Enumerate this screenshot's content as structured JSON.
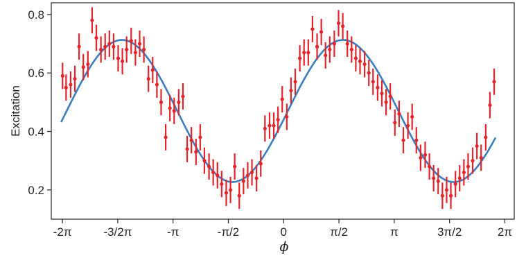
{
  "chart_data": {
    "type": "scatter",
    "title": "",
    "xlabel": "ϕ",
    "ylabel": "Excitation",
    "xlim": [
      -6.6,
      6.55
    ],
    "ylim": [
      0.1,
      0.84
    ],
    "grid": false,
    "x_ticks": [
      {
        "value": -6.2832,
        "label": "-2π"
      },
      {
        "value": -4.7124,
        "label": "-3/2π"
      },
      {
        "value": -3.1416,
        "label": "-π"
      },
      {
        "value": -1.5708,
        "label": "-π/2"
      },
      {
        "value": 0,
        "label": "0"
      },
      {
        "value": 1.5708,
        "label": "π/2"
      },
      {
        "value": 3.1416,
        "label": "π"
      },
      {
        "value": 4.7124,
        "label": "3π/2"
      },
      {
        "value": 6.2832,
        "label": "2π"
      }
    ],
    "y_ticks": [
      {
        "value": 0.2,
        "label": "0.2"
      },
      {
        "value": 0.4,
        "label": "0.4"
      },
      {
        "value": 0.6,
        "label": "0.6"
      },
      {
        "value": 0.8,
        "label": "0.8"
      }
    ],
    "series": [
      {
        "kind": "points-with-errorbars",
        "color": "#e3242b",
        "error": 0.045,
        "x": [
          -6.28,
          -6.18,
          -6.05,
          -5.93,
          -5.81,
          -5.69,
          -5.56,
          -5.44,
          -5.32,
          -5.19,
          -5.07,
          -4.95,
          -4.83,
          -4.7,
          -4.58,
          -4.46,
          -4.33,
          -4.21,
          -4.09,
          -3.97,
          -3.84,
          -3.72,
          -3.6,
          -3.48,
          -3.35,
          -3.23,
          -3.11,
          -2.98,
          -2.86,
          -2.74,
          -2.62,
          -2.49,
          -2.37,
          -2.25,
          -2.12,
          -2.0,
          -1.88,
          -1.76,
          -1.63,
          -1.51,
          -1.39,
          -1.26,
          -1.14,
          -1.02,
          -0.9,
          -0.77,
          -0.65,
          -0.53,
          -0.4,
          -0.28,
          -0.16,
          -0.04,
          0.09,
          0.21,
          0.33,
          0.46,
          0.58,
          0.7,
          0.82,
          0.95,
          1.07,
          1.19,
          1.31,
          1.44,
          1.56,
          1.68,
          1.81,
          1.93,
          2.05,
          2.17,
          2.3,
          2.42,
          2.54,
          2.67,
          2.79,
          2.91,
          3.03,
          3.16,
          3.28,
          3.4,
          3.53,
          3.65,
          3.77,
          3.89,
          4.02,
          4.14,
          4.26,
          4.39,
          4.51,
          4.63,
          4.75,
          4.88,
          5.0,
          5.12,
          5.24,
          5.37,
          5.49,
          5.61,
          5.74,
          5.86,
          5.98
        ],
        "y": [
          0.59,
          0.55,
          0.56,
          0.58,
          0.69,
          0.62,
          0.63,
          0.78,
          0.72,
          0.68,
          0.69,
          0.7,
          0.69,
          0.65,
          0.64,
          0.68,
          0.71,
          0.67,
          0.7,
          0.68,
          0.58,
          0.61,
          0.56,
          0.5,
          0.38,
          0.48,
          0.47,
          0.5,
          0.52,
          0.34,
          0.37,
          0.33,
          0.38,
          0.3,
          0.28,
          0.26,
          0.25,
          0.22,
          0.19,
          0.2,
          0.28,
          0.18,
          0.23,
          0.25,
          0.26,
          0.24,
          0.29,
          0.41,
          0.42,
          0.42,
          0.44,
          0.51,
          0.45,
          0.54,
          0.57,
          0.65,
          0.67,
          0.67,
          0.75,
          0.69,
          0.74,
          0.66,
          0.68,
          0.7,
          0.77,
          0.76,
          0.7,
          0.68,
          0.65,
          0.64,
          0.63,
          0.6,
          0.57,
          0.55,
          0.53,
          0.5,
          0.52,
          0.43,
          0.46,
          0.37,
          0.42,
          0.45,
          0.37,
          0.31,
          0.32,
          0.28,
          0.24,
          0.23,
          0.18,
          0.2,
          0.18,
          0.22,
          0.24,
          0.26,
          0.28,
          0.3,
          0.35,
          0.31,
          0.38,
          0.49,
          0.57
        ]
      },
      {
        "kind": "fit-curve",
        "color": "#3a7ebf",
        "model": "offset + amplitude * sin(x + phase)",
        "offset": 0.47,
        "amplitude": 0.243,
        "phase": -0.12,
        "x_range": [
          -6.32,
          6.02
        ]
      }
    ]
  }
}
